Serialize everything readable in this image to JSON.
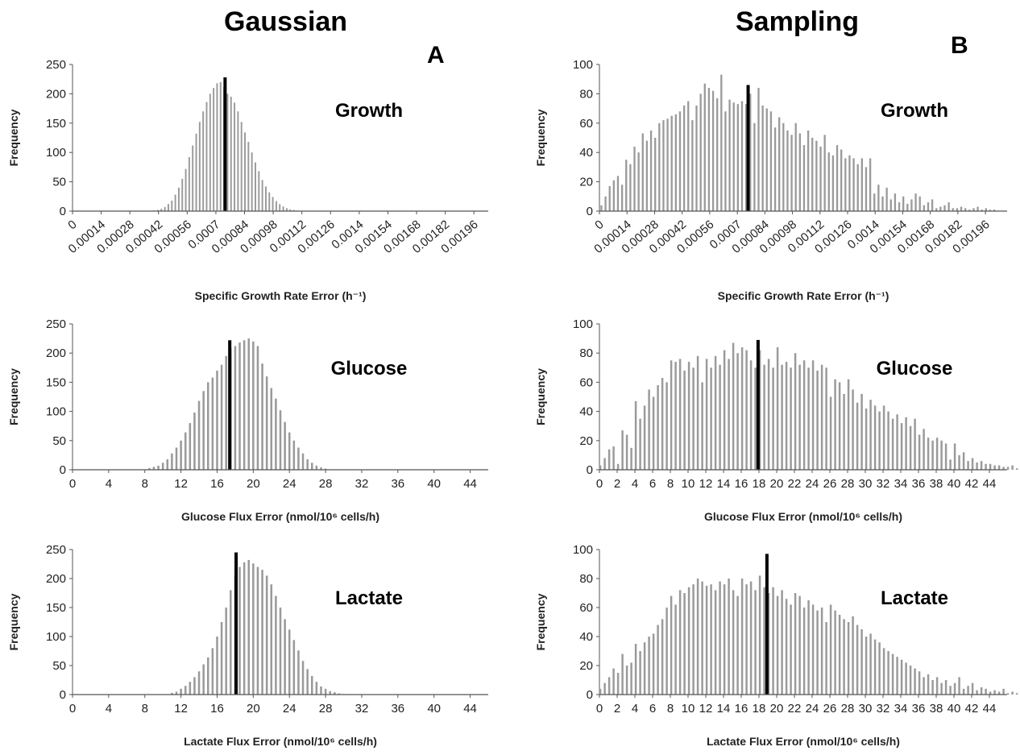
{
  "figure": {
    "columns": [
      {
        "title": "Gaussian",
        "letter": "A"
      },
      {
        "title": "Sampling",
        "letter": "B"
      }
    ]
  },
  "chart_data": [
    {
      "id": "a-growth",
      "type": "bar",
      "label": "Growth",
      "xlabel": "Specific Growth Rate Error (h⁻¹)",
      "ylabel": "Frequency",
      "ylim": [
        0,
        250
      ],
      "yticks": [
        0,
        50,
        100,
        150,
        200,
        250
      ],
      "xlim": [
        0,
        0.00203
      ],
      "xticks": [
        "0",
        "0.00014",
        "0.00028",
        "0.00042",
        "0.00056",
        "0.0007",
        "0.00084",
        "0.00098",
        "0.00112",
        "0.00126",
        "0.0014",
        "0.00154",
        "0.00168",
        "0.00182",
        "0.00196"
      ],
      "xtick_values": [
        0,
        0.00014,
        0.00028,
        0.00042,
        0.00056,
        0.0007,
        0.00084,
        0.00098,
        0.00112,
        0.00126,
        0.0014,
        0.00154,
        0.00168,
        0.00182,
        0.00196
      ],
      "bin_start": 0.0004,
      "bin_width": 1.7e-05,
      "values": [
        1,
        2,
        4,
        7,
        12,
        18,
        28,
        40,
        55,
        72,
        92,
        112,
        132,
        152,
        170,
        186,
        200,
        210,
        218,
        220,
        212,
        200,
        195,
        185,
        170,
        152,
        134,
        118,
        100,
        83,
        68,
        53,
        42,
        32,
        24,
        17,
        12,
        8,
        5,
        3,
        2,
        1
      ],
      "highlight": {
        "x": 0.000745,
        "value": 228
      }
    },
    {
      "id": "b-growth",
      "type": "bar",
      "label": "Growth",
      "xlabel": "Specific Growth Rate Error (h⁻¹)",
      "ylabel": "Frequency",
      "ylim": [
        0,
        100
      ],
      "yticks": [
        0,
        20,
        40,
        60,
        80,
        100
      ],
      "xlim": [
        0,
        0.00207
      ],
      "xticks": [
        "0",
        "0.00014",
        "0.00028",
        "0.00042",
        "0.00056",
        "0.0007",
        "0.00084",
        "0.00098",
        "0.00112",
        "0.00126",
        "0.0014",
        "0.00154",
        "0.00168",
        "0.00182",
        "0.00196"
      ],
      "xtick_values": [
        0,
        0.00014,
        0.00028,
        0.00042,
        0.00056,
        0.0007,
        0.00084,
        0.00098,
        0.00112,
        0.00126,
        0.0014,
        0.00154,
        0.00168,
        0.00182,
        0.00196
      ],
      "bin_start": 1e-05,
      "bin_width": 2.1e-05,
      "values": [
        4,
        10,
        17,
        21,
        24,
        18,
        35,
        32,
        44,
        40,
        53,
        48,
        55,
        50,
        60,
        62,
        63,
        65,
        66,
        68,
        72,
        75,
        62,
        72,
        80,
        87,
        84,
        82,
        77,
        93,
        68,
        76,
        74,
        73,
        75,
        73,
        80,
        60,
        84,
        72,
        70,
        68,
        57,
        64,
        60,
        55,
        52,
        60,
        53,
        45,
        55,
        50,
        48,
        44,
        52,
        40,
        38,
        45,
        42,
        36,
        38,
        36,
        32,
        36,
        30,
        36,
        12,
        18,
        10,
        16,
        8,
        12,
        6,
        10,
        5,
        8,
        12,
        10,
        4,
        6,
        8,
        2,
        3,
        4,
        6,
        2,
        2,
        3,
        2,
        1,
        2,
        3,
        1,
        2,
        1,
        1
      ],
      "highlight": {
        "x": 0.000755,
        "value": 86
      }
    },
    {
      "id": "a-glucose",
      "type": "bar",
      "label": "Glucose",
      "xlabel": "Glucose Flux Error (nmol/10⁶ cells/h)",
      "ylabel": "Frequency",
      "ylim": [
        0,
        250
      ],
      "yticks": [
        0,
        50,
        100,
        150,
        200,
        250
      ],
      "xlim": [
        0,
        46
      ],
      "xticks": [
        "0",
        "4",
        "8",
        "12",
        "16",
        "20",
        "24",
        "28",
        "32",
        "36",
        "40",
        "44"
      ],
      "xtick_values": [
        0,
        4,
        8,
        12,
        16,
        20,
        24,
        28,
        32,
        36,
        40,
        44
      ],
      "bin_start": 8.5,
      "bin_width": 0.5,
      "values": [
        3,
        5,
        7,
        12,
        18,
        28,
        38,
        50,
        64,
        80,
        98,
        118,
        135,
        150,
        158,
        170,
        180,
        195,
        208,
        212,
        218,
        222,
        225,
        220,
        212,
        182,
        160,
        140,
        122,
        102,
        82,
        64,
        50,
        38,
        28,
        18,
        12,
        7,
        4,
        2
      ],
      "highlight": {
        "x": 17.4,
        "value": 222
      }
    },
    {
      "id": "b-glucose",
      "type": "bar",
      "label": "Glucose",
      "xlabel": "Glucose Flux Error (nmol/10⁶ cells/h)",
      "ylabel": "Frequency",
      "ylim": [
        0,
        100
      ],
      "yticks": [
        0,
        20,
        40,
        60,
        80,
        100
      ],
      "xlim": [
        0,
        46
      ],
      "xticks": [
        "0",
        "2",
        "4",
        "6",
        "8",
        "10",
        "12",
        "14",
        "16",
        "18",
        "20",
        "22",
        "24",
        "26",
        "28",
        "30",
        "32",
        "34",
        "36",
        "38",
        "40",
        "42",
        "44"
      ],
      "xtick_values": [
        0,
        2,
        4,
        6,
        8,
        10,
        12,
        14,
        16,
        18,
        20,
        22,
        24,
        26,
        28,
        30,
        32,
        34,
        36,
        38,
        40,
        42,
        44
      ],
      "bin_start": 0.1,
      "bin_width": 0.5,
      "values": [
        3,
        8,
        14,
        16,
        4,
        27,
        24,
        15,
        47,
        35,
        44,
        55,
        50,
        58,
        63,
        60,
        75,
        74,
        76,
        68,
        74,
        70,
        78,
        60,
        76,
        70,
        78,
        72,
        82,
        76,
        87,
        80,
        84,
        82,
        75,
        70,
        82,
        72,
        76,
        70,
        84,
        72,
        74,
        70,
        80,
        72,
        75,
        70,
        75,
        68,
        72,
        70,
        50,
        62,
        60,
        52,
        62,
        55,
        46,
        52,
        42,
        48,
        44,
        40,
        44,
        40,
        35,
        38,
        32,
        36,
        30,
        35,
        24,
        28,
        22,
        20,
        22,
        20,
        18,
        7,
        18,
        10,
        12,
        6,
        8,
        5,
        6,
        4,
        4,
        3,
        3,
        2,
        2,
        3,
        1,
        2,
        1,
        2,
        1,
        1
      ],
      "highlight": {
        "x": 17.9,
        "value": 89
      }
    },
    {
      "id": "a-lactate",
      "type": "bar",
      "label": "Lactate",
      "xlabel": "Lactate Flux Error (nmol/10⁶ cells/h)",
      "ylabel": "Frequency",
      "ylim": [
        0,
        250
      ],
      "yticks": [
        0,
        50,
        100,
        150,
        200,
        250
      ],
      "xlim": [
        0,
        46
      ],
      "xticks": [
        "0",
        "4",
        "8",
        "12",
        "16",
        "20",
        "24",
        "28",
        "32",
        "36",
        "40",
        "44"
      ],
      "xtick_values": [
        0,
        4,
        8,
        12,
        16,
        20,
        24,
        28,
        32,
        36,
        40,
        44
      ],
      "bin_start": 11.0,
      "bin_width": 0.5,
      "values": [
        3,
        5,
        10,
        15,
        22,
        30,
        40,
        52,
        64,
        80,
        100,
        125,
        150,
        180,
        205,
        220,
        228,
        232,
        226,
        220,
        215,
        205,
        190,
        170,
        150,
        130,
        112,
        94,
        76,
        58,
        44,
        32,
        22,
        14,
        10,
        6,
        4,
        2,
        1
      ],
      "highlight": {
        "x": 18.1,
        "value": 245
      }
    },
    {
      "id": "b-lactate",
      "type": "bar",
      "label": "Lactate",
      "xlabel": "Lactate Flux Error (nmol/10⁶ cells/h)",
      "ylabel": "Frequency",
      "ylim": [
        0,
        100
      ],
      "yticks": [
        0,
        20,
        40,
        60,
        80,
        100
      ],
      "xlim": [
        0,
        46
      ],
      "xticks": [
        "0",
        "2",
        "4",
        "6",
        "8",
        "10",
        "12",
        "14",
        "16",
        "18",
        "20",
        "22",
        "24",
        "26",
        "28",
        "30",
        "32",
        "34",
        "36",
        "38",
        "40",
        "42",
        "44"
      ],
      "xtick_values": [
        0,
        2,
        4,
        6,
        8,
        10,
        12,
        14,
        16,
        18,
        20,
        22,
        24,
        26,
        28,
        30,
        32,
        34,
        36,
        38,
        40,
        42,
        44
      ],
      "bin_start": 0.1,
      "bin_width": 0.5,
      "values": [
        4,
        8,
        12,
        18,
        15,
        28,
        20,
        22,
        35,
        30,
        36,
        40,
        42,
        48,
        52,
        60,
        68,
        62,
        72,
        70,
        74,
        76,
        80,
        78,
        75,
        76,
        72,
        78,
        76,
        80,
        72,
        68,
        80,
        76,
        78,
        72,
        82,
        74,
        70,
        74,
        68,
        72,
        66,
        62,
        70,
        68,
        60,
        65,
        62,
        58,
        60,
        50,
        62,
        58,
        55,
        52,
        50,
        54,
        48,
        45,
        40,
        42,
        38,
        36,
        32,
        30,
        28,
        26,
        24,
        22,
        20,
        18,
        16,
        12,
        14,
        10,
        12,
        8,
        10,
        6,
        8,
        12,
        4,
        6,
        8,
        3,
        5,
        4,
        2,
        3,
        2,
        4,
        1,
        2,
        1,
        1,
        2,
        1
      ],
      "highlight": {
        "x": 18.9,
        "value": 97
      }
    }
  ]
}
